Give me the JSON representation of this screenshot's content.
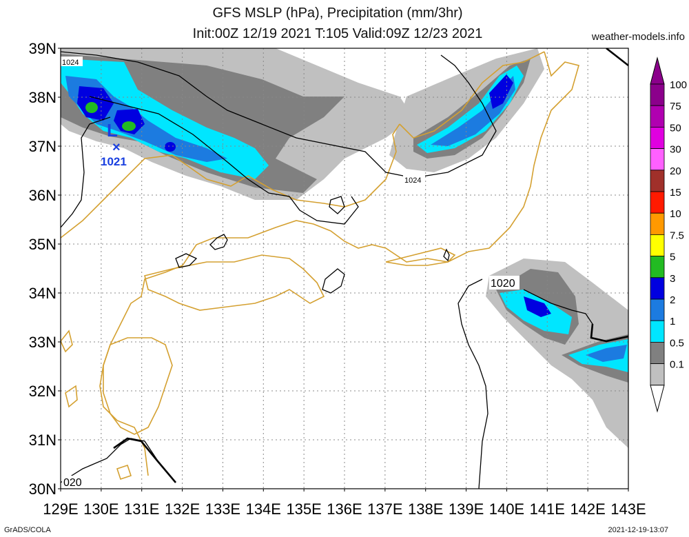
{
  "header": {
    "title_line1": "GFS MSLP (hPa), Precipitation (mm/3hr)",
    "title_line2": "Init:00Z 12/19 2021 T:105 Valid:09Z 12/23 2021",
    "site": "weather-models.info"
  },
  "footer": {
    "credit": "GrADS/COLA",
    "timestamp": "2021-12-19-13:07"
  },
  "axes": {
    "lat_labels": [
      "39N",
      "38N",
      "37N",
      "36N",
      "35N",
      "34N",
      "33N",
      "32N",
      "31N",
      "30N"
    ],
    "lon_labels": [
      "129E",
      "130E",
      "131E",
      "132E",
      "133E",
      "134E",
      "135E",
      "136E",
      "137E",
      "138E",
      "139E",
      "140E",
      "141E",
      "142E",
      "143E"
    ]
  },
  "isobar_labels": {
    "nw_1024": "1024",
    "center_1024": "1024",
    "east_1020": "1020",
    "sw_1020": "020"
  },
  "low_center": {
    "symbol": "L",
    "marker": "×",
    "pressure": "1021"
  },
  "legend": {
    "labels": [
      "100",
      "75",
      "50",
      "30",
      "20",
      "15",
      "10",
      "7.5",
      "5",
      "3",
      "2",
      "1",
      "0.5",
      "0.1"
    ],
    "colors": [
      "#8b008b",
      "#b000b0",
      "#e000e0",
      "#ff60ff",
      "#a0302a",
      "#ff1a00",
      "#ff9900",
      "#ffff00",
      "#22bb22",
      "#0000e0",
      "#1c7be0",
      "#00e6ff",
      "#808080",
      "#c0c0c0"
    ]
  },
  "colors": {
    "coast": "#d4a030",
    "isobar": "#000000",
    "grid": "#888888",
    "low_marker": "#1a40e0"
  }
}
